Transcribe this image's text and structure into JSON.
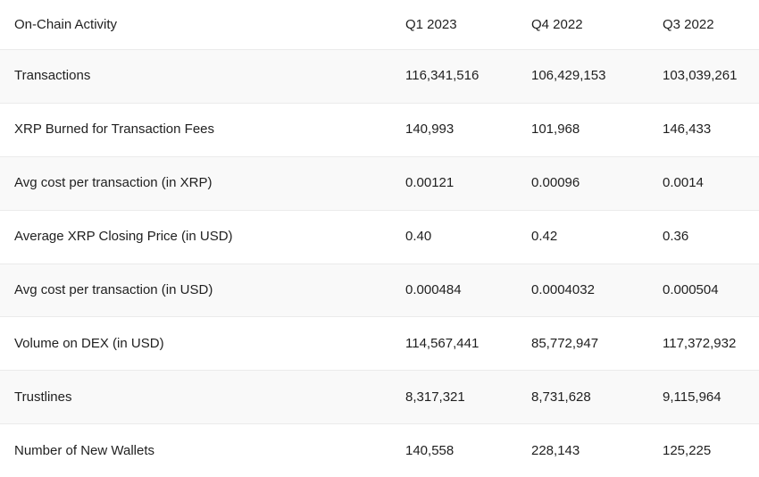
{
  "chart_data": {
    "type": "table",
    "title": "On-Chain Activity",
    "columns": [
      "On-Chain Activity",
      "Q1 2023",
      "Q4 2022",
      "Q3 2022"
    ],
    "rows": [
      [
        "Transactions",
        "116,341,516",
        "106,429,153",
        "103,039,261"
      ],
      [
        "XRP Burned for Transaction Fees",
        "140,993",
        "101,968",
        "146,433"
      ],
      [
        "Avg cost per transaction (in XRP)",
        "0.00121",
        "0.00096",
        "0.0014"
      ],
      [
        "Average XRP Closing Price (in USD)",
        "0.40",
        "0.42",
        "0.36"
      ],
      [
        "Avg cost per transaction (in USD)",
        "0.000484",
        "0.0004032",
        "0.000504"
      ],
      [
        "Volume on DEX (in USD)",
        "114,567,441",
        "85,772,947",
        "117,372,932"
      ],
      [
        "Trustlines",
        "8,317,321",
        "8,731,628",
        "9,115,964"
      ],
      [
        "Number of New Wallets",
        "140,558",
        "228,143",
        "125,225"
      ]
    ]
  },
  "colors": {
    "text": "#1f1f1f",
    "row_background": "#ffffff",
    "row_alternate_background": "#f9f9f9",
    "row_border": "#ebebeb"
  }
}
